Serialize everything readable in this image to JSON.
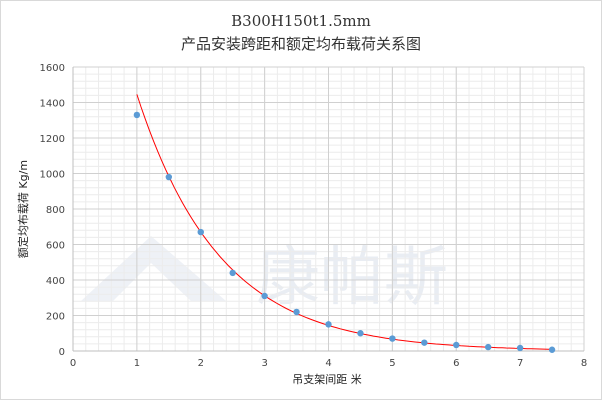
{
  "chart_data": {
    "type": "scatter",
    "title": "B300H150t1.5mm",
    "subtitle": "产品安装跨距和额定均布载荷关系图",
    "xlabel": "吊支架间距 米",
    "ylabel": "额定均布载荷 Kg/m",
    "xlim": [
      0,
      8
    ],
    "ylim": [
      0,
      1600
    ],
    "xticks": [
      "0",
      "1",
      "2",
      "3",
      "4",
      "5",
      "6",
      "7",
      "8"
    ],
    "yticks": [
      "0",
      "200",
      "400",
      "600",
      "800",
      "1000",
      "1200",
      "1400",
      "1600"
    ],
    "grid": true,
    "minor_grid": true,
    "series": [
      {
        "x": [
          1,
          1.5,
          2,
          2.5,
          3,
          3.5,
          4,
          4.5,
          5,
          5.5,
          6,
          6.5,
          7,
          7.5
        ],
        "y": [
          1330,
          980,
          670,
          440,
          310,
          220,
          150,
          100,
          70,
          47,
          34,
          22,
          17,
          7
        ],
        "color": "#5b9bd5"
      }
    ],
    "trendline": {
      "type": "exponential",
      "color": "#ff0000"
    }
  },
  "watermark": {
    "text": "康帕斯",
    "color": "#e9edf3"
  }
}
